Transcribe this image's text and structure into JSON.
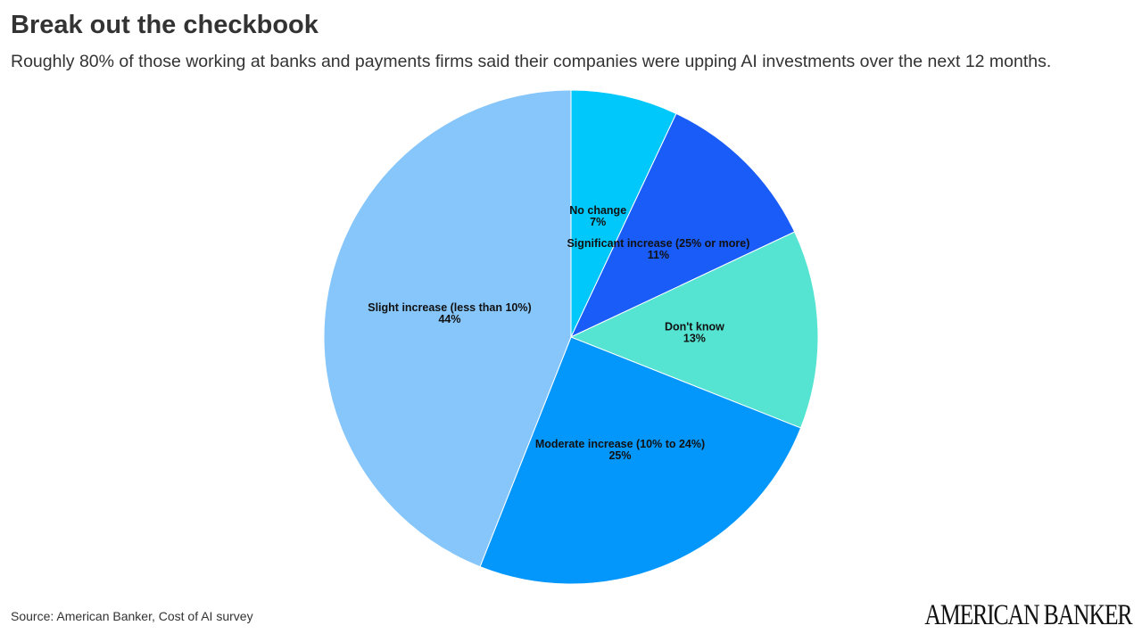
{
  "header": {
    "title": "Break out the checkbook",
    "subtitle": "Roughly 80% of those working at banks and payments firms said their companies were upping AI investments over the next 12 months."
  },
  "footer": {
    "source": "Source: American Banker, Cost of AI survey",
    "brand": "AMERICAN BANKER"
  },
  "chart_data": {
    "type": "pie",
    "title": "Break out the checkbook",
    "subtitle": "Roughly 80% of those working at banks and payments firms said their companies were upping AI investments over the next 12 months.",
    "start": "12 o'clock",
    "direction": "clockwise",
    "slices": [
      {
        "label": "No change",
        "value": 7,
        "value_label": "7%",
        "color": "#00C8FA"
      },
      {
        "label": "Significant increase (25% or more)",
        "value": 11,
        "value_label": "11%",
        "color": "#1A5CF8"
      },
      {
        "label": "Don't know",
        "value": 13,
        "value_label": "13%",
        "color": "#55E4D2"
      },
      {
        "label": "Moderate increase (10% to 24%)",
        "value": 25,
        "value_label": "25%",
        "color": "#0497FB"
      },
      {
        "label": "Slight increase (less than 10%)",
        "value": 44,
        "value_label": "44%",
        "color": "#86C6FB"
      }
    ],
    "label_text_color": "#111111",
    "label_halo_color": "#ffffff"
  }
}
